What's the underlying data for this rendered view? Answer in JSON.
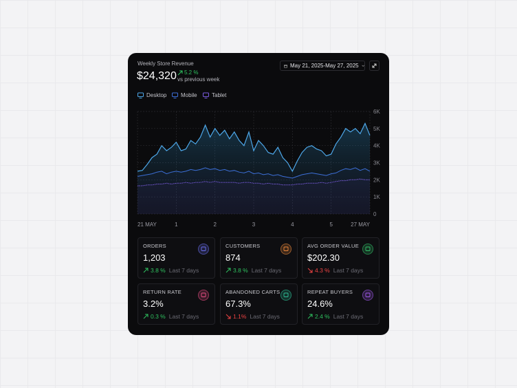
{
  "header": {
    "title": "Weekly Store Revenue",
    "total": "$24,320",
    "change": "5.2 %",
    "direction": "up",
    "comparison": "vs previous week",
    "date_range": "May 21, 2025-May 27, 2025"
  },
  "chart_data": {
    "type": "line",
    "x": [
      0,
      0.125,
      0.25,
      0.375,
      0.5,
      0.625,
      0.75,
      0.875,
      1,
      1.125,
      1.25,
      1.375,
      1.5,
      1.625,
      1.75,
      1.875,
      2,
      2.125,
      2.25,
      2.375,
      2.5,
      2.625,
      2.75,
      2.875,
      3,
      3.125,
      3.25,
      3.375,
      3.5,
      3.625,
      3.75,
      3.875,
      4,
      4.125,
      4.25,
      4.375,
      4.5,
      4.625,
      4.75,
      4.875,
      5,
      5.125,
      5.25,
      5.375,
      5.5,
      5.625,
      5.75,
      5.875,
      6
    ],
    "series": [
      {
        "name": "Desktop",
        "color": "#4ea8ea",
        "values": [
          2500,
          2550,
          2900,
          3300,
          3500,
          4000,
          3700,
          3900,
          4200,
          3700,
          3800,
          4300,
          4100,
          4500,
          5200,
          4500,
          5000,
          4600,
          4900,
          4400,
          4800,
          4300,
          4000,
          4800,
          3700,
          4300,
          4000,
          3600,
          3500,
          3900,
          3300,
          3000,
          2500,
          3100,
          3600,
          3900,
          4000,
          3800,
          3700,
          3400,
          3500,
          4100,
          4500,
          5000,
          4800,
          5000,
          4700,
          5300,
          4600
        ]
      },
      {
        "name": "Mobile",
        "color": "#3d6fd8",
        "values": [
          2200,
          2250,
          2300,
          2350,
          2450,
          2500,
          2350,
          2450,
          2500,
          2450,
          2500,
          2600,
          2550,
          2600,
          2700,
          2600,
          2650,
          2550,
          2600,
          2500,
          2550,
          2450,
          2400,
          2500,
          2350,
          2400,
          2300,
          2350,
          2250,
          2300,
          2200,
          2150,
          2100,
          2200,
          2300,
          2350,
          2400,
          2350,
          2300,
          2250,
          2350,
          2400,
          2550,
          2650,
          2600,
          2700,
          2550,
          2650,
          2500
        ]
      },
      {
        "name": "Tablet",
        "color": "#7b5ce0",
        "values": [
          1650,
          1650,
          1700,
          1700,
          1750,
          1750,
          1800,
          1750,
          1800,
          1800,
          1850,
          1800,
          1850,
          1850,
          1900,
          1850,
          1900,
          1850,
          1850,
          1850,
          1850,
          1800,
          1850,
          1850,
          1800,
          1800,
          1750,
          1800,
          1750,
          1750,
          1700,
          1700,
          1700,
          1750,
          1750,
          1800,
          1800,
          1800,
          1850,
          1800,
          1850,
          1900,
          1950,
          1950,
          2000,
          2000,
          2050,
          2000,
          2000
        ]
      }
    ],
    "xlim": [
      0,
      6
    ],
    "xticks": [
      {
        "value": 0,
        "label": "21 MAY"
      },
      1,
      2,
      3,
      4,
      5,
      {
        "value": 6,
        "label": "27 MAY"
      }
    ],
    "ylim": [
      0,
      6000
    ],
    "yticks": [
      0,
      {
        "value": 1000,
        "label": "1K"
      },
      {
        "value": 2000,
        "label": "2K"
      },
      {
        "value": 3000,
        "label": "3K"
      },
      {
        "value": 4000,
        "label": "4K"
      },
      {
        "value": 5000,
        "label": "5K"
      },
      {
        "value": 6000,
        "label": "6K"
      }
    ],
    "grid": true
  },
  "kpis": [
    {
      "label": "ORDERS",
      "value": "1,203",
      "change": "3.8 %",
      "direction": "up",
      "period": "Last 7 days",
      "color": "#6b6ff0"
    },
    {
      "label": "CUSTOMERS",
      "value": "874",
      "change": "3.8 %",
      "direction": "up",
      "period": "Last 7 days",
      "color": "#f08a3c"
    },
    {
      "label": "AVG ORDER VALUE",
      "value": "$202.30",
      "change": "4.3 %",
      "direction": "down",
      "period": "Last 7 days",
      "color": "#34c36a"
    },
    {
      "label": "RETURN RATE",
      "value": "3.2%",
      "change": "0.3 %",
      "direction": "up",
      "period": "Last 7 days",
      "color": "#ec4f86"
    },
    {
      "label": "ABANDONED CARTS",
      "value": "67.3%",
      "change": "1.1%",
      "direction": "down",
      "period": "Last 7 days",
      "color": "#2fc49a"
    },
    {
      "label": "REPEAT BUYERS",
      "value": "24.6%",
      "change": "2.4 %",
      "direction": "up",
      "period": "Last 7 days",
      "color": "#a35cf0"
    }
  ]
}
